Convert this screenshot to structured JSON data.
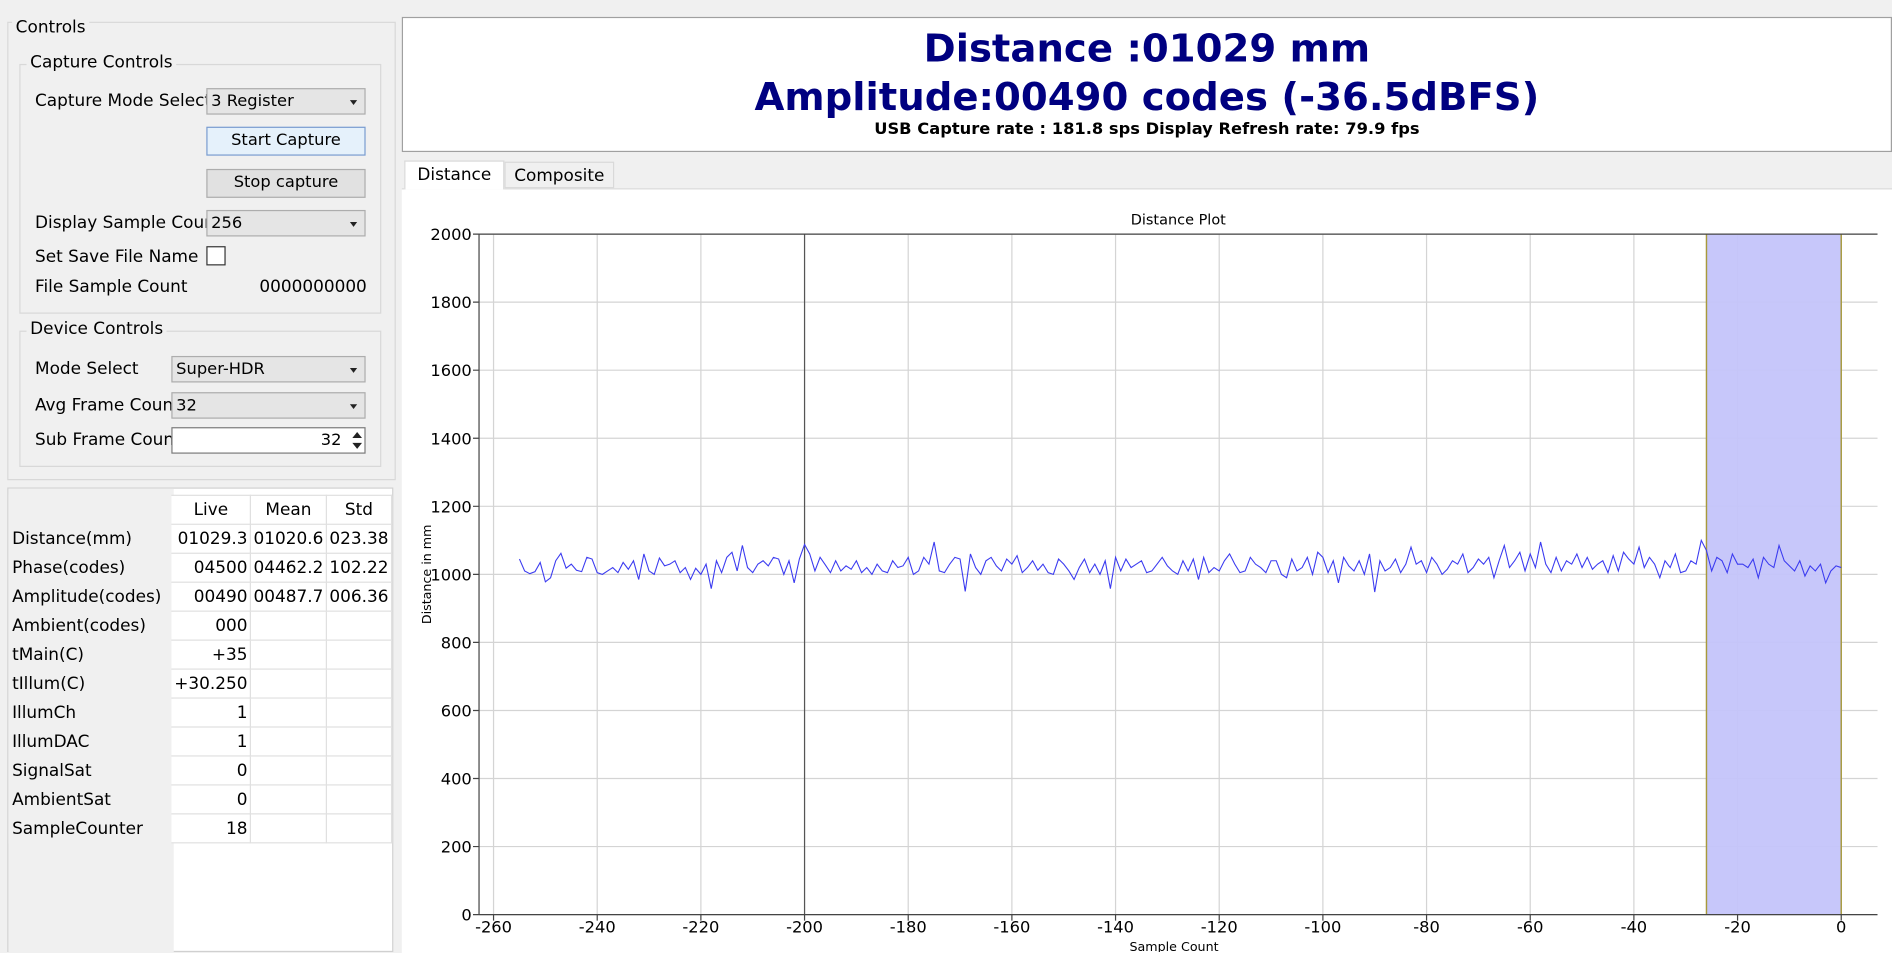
{
  "controls": {
    "title": "Controls",
    "capture": {
      "title": "Capture Controls",
      "mode_label": "Capture Mode Select",
      "mode_value": "3 Register",
      "start": "Start Capture",
      "stop": "Stop capture",
      "count_label": "Display Sample Count",
      "count_value": "256",
      "save_label": "Set Save File Name",
      "file_count_label": "File Sample Count",
      "file_count_value": "0000000000"
    },
    "device": {
      "title": "Device Controls",
      "mode_label": "Mode Select",
      "mode_value": "Super-HDR",
      "avg_label": "Avg Frame Count",
      "avg_value": "32",
      "sub_label": "Sub Frame Count",
      "sub_value": "32"
    }
  },
  "table": {
    "header": [
      "Live",
      "Mean",
      "Std"
    ],
    "rows": [
      [
        "Distance(mm)",
        "01029.3",
        "01020.6",
        "023.38"
      ],
      [
        "Phase(codes)",
        "04500",
        "04462.2",
        "102.22"
      ],
      [
        "Amplitude(codes)",
        "00490",
        "00487.7",
        "006.36"
      ],
      [
        "Ambient(codes)",
        "000"
      ],
      [
        "tMain(C)",
        "+35"
      ],
      [
        "tIllum(C)",
        "+30.250"
      ],
      [
        "IllumCh",
        "1"
      ],
      [
        "IllumDAC",
        "1"
      ],
      [
        "SignalSat",
        "0"
      ],
      [
        "AmbientSat",
        "0"
      ],
      [
        "SampleCounter",
        "18"
      ]
    ]
  },
  "header": {
    "distance": "Distance :01029 mm",
    "amplitude": "Amplitude:00490 codes (-36.5dBFS)",
    "rates": "USB Capture rate : 181.8 sps Display Refresh rate: 79.9 fps"
  },
  "tabs": [
    "Distance",
    "Composite"
  ],
  "chart_data": {
    "type": "line",
    "title": "Distance Plot",
    "y_label": "Distance in mm",
    "x_label": "Sample Count",
    "color": "#3b3bf0",
    "xlim": [
      -262.8,
      7
    ],
    "xticks": [
      -260,
      -240,
      -220,
      -200,
      -180,
      -160,
      -140,
      -120,
      -100,
      -80,
      -60,
      -40,
      -20,
      0
    ],
    "ylim": [
      0,
      2000
    ],
    "yticks": [
      0,
      200,
      400,
      600,
      800,
      1000,
      1200,
      1400,
      1600,
      1800,
      2000
    ],
    "grid": true,
    "highlight_range": [
      -26,
      0
    ],
    "cursor_x": -200,
    "x": [
      -255,
      -254,
      -253,
      -252,
      -251,
      -250,
      -249,
      -248,
      -247,
      -246,
      -245,
      -244,
      -243,
      -242,
      -241,
      -240,
      -239,
      -238,
      -237,
      -236,
      -235,
      -234,
      -233,
      -232,
      -231,
      -230,
      -229,
      -228,
      -227,
      -226,
      -225,
      -224,
      -223,
      -222,
      -221,
      -220,
      -219,
      -218,
      -217,
      -216,
      -215,
      -214,
      -213,
      -212,
      -211,
      -210,
      -209,
      -208,
      -207,
      -206,
      -205,
      -204,
      -203,
      -202,
      -201,
      -200,
      -199,
      -198,
      -197,
      -196,
      -195,
      -194,
      -193,
      -192,
      -191,
      -190,
      -189,
      -188,
      -187,
      -186,
      -185,
      -184,
      -183,
      -182,
      -181,
      -180,
      -179,
      -178,
      -177,
      -176,
      -175,
      -174,
      -173,
      -172,
      -171,
      -170,
      -169,
      -168,
      -167,
      -166,
      -165,
      -164,
      -163,
      -162,
      -161,
      -160,
      -159,
      -158,
      -157,
      -156,
      -155,
      -154,
      -153,
      -152,
      -151,
      -150,
      -149,
      -148,
      -147,
      -146,
      -145,
      -144,
      -143,
      -142,
      -141,
      -140,
      -139,
      -138,
      -137,
      -136,
      -135,
      -134,
      -133,
      -132,
      -131,
      -130,
      -129,
      -128,
      -127,
      -126,
      -125,
      -124,
      -123,
      -122,
      -121,
      -120,
      -119,
      -118,
      -117,
      -116,
      -115,
      -114,
      -113,
      -112,
      -111,
      -110,
      -109,
      -108,
      -107,
      -106,
      -105,
      -104,
      -103,
      -102,
      -101,
      -100,
      -99,
      -98,
      -97,
      -96,
      -95,
      -94,
      -93,
      -92,
      -91,
      -90,
      -89,
      -88,
      -87,
      -86,
      -85,
      -84,
      -83,
      -82,
      -81,
      -80,
      -79,
      -78,
      -77,
      -76,
      -75,
      -74,
      -73,
      -72,
      -71,
      -70,
      -69,
      -68,
      -67,
      -66,
      -65,
      -64,
      -63,
      -62,
      -61,
      -60,
      -59,
      -58,
      -57,
      -56,
      -55,
      -54,
      -53,
      -52,
      -51,
      -50,
      -49,
      -48,
      -47,
      -46,
      -45,
      -44,
      -43,
      -42,
      -41,
      -40,
      -39,
      -38,
      -37,
      -36,
      -35,
      -34,
      -33,
      -32,
      -31,
      -30,
      -29,
      -28,
      -27,
      -26,
      -25,
      -24,
      -23,
      -22,
      -21,
      -20,
      -19,
      -18,
      -17,
      -16,
      -15,
      -14,
      -13,
      -12,
      -11,
      -10,
      -9,
      -8,
      -7,
      -6,
      -5,
      -4,
      -3,
      -2,
      -1,
      0
    ],
    "values": [
      1045,
      1010,
      1002,
      1008,
      1035,
      978,
      990,
      1040,
      1062,
      1018,
      1030,
      1012,
      1008,
      1050,
      1045,
      1005,
      1000,
      1010,
      1020,
      1005,
      1035,
      1015,
      1040,
      985,
      1060,
      1010,
      1000,
      1048,
      1025,
      1030,
      1040,
      1005,
      1020,
      985,
      1018,
      1000,
      1030,
      958,
      1040,
      1005,
      1050,
      1065,
      1010,
      1085,
      1020,
      1005,
      1030,
      1040,
      1025,
      1050,
      1045,
      1000,
      1040,
      975,
      1045,
      1088,
      1060,
      1010,
      1050,
      1028,
      1005,
      1040,
      1010,
      1025,
      1015,
      1040,
      1005,
      1020,
      1000,
      1030,
      1010,
      1005,
      1040,
      1020,
      1025,
      1050,
      1000,
      1010,
      1050,
      1030,
      1095,
      1010,
      1005,
      1030,
      1050,
      1045,
      950,
      1060,
      1020,
      1000,
      1040,
      1050,
      1025,
      1010,
      1045,
      1030,
      1055,
      1005,
      1020,
      1040,
      1012,
      1030,
      1005,
      1000,
      1045,
      1030,
      1010,
      985,
      1020,
      1045,
      1005,
      1030,
      1000,
      1040,
      958,
      1050,
      1010,
      1045,
      1020,
      1030,
      1040,
      1005,
      1010,
      1030,
      1050,
      1025,
      1010,
      1000,
      1040,
      1010,
      1045,
      985,
      1050,
      1005,
      1020,
      1010,
      1040,
      1060,
      1030,
      1005,
      1010,
      1050,
      1030,
      1020,
      1005,
      1040,
      1040,
      1000,
      990,
      1045,
      1010,
      1020,
      1050,
      1000,
      1065,
      1050,
      1005,
      1040,
      975,
      1050,
      1025,
      1010,
      1040,
      1000,
      1060,
      948,
      1040,
      1010,
      1020,
      1045,
      1005,
      1030,
      1080,
      1030,
      1040,
      1005,
      1050,
      1030,
      1000,
      1015,
      1040,
      1030,
      1060,
      1005,
      1020,
      1045,
      1030,
      1050,
      990,
      1040,
      1085,
      1020,
      1040,
      1065,
      1010,
      1060,
      1020,
      1095,
      1030,
      1005,
      1050,
      1010,
      1040,
      1030,
      1060,
      1020,
      1050,
      1015,
      1030,
      1040,
      1005,
      1055,
      1010,
      1065,
      1045,
      1030,
      1080,
      1020,
      1050,
      1030,
      990,
      1040,
      1020,
      1060,
      1005,
      1010,
      1040,
      1030,
      1100,
      1070,
      1010,
      1050,
      1040,
      1005,
      1060,
      1030,
      1030,
      1020,
      1045,
      990,
      1050,
      1030,
      1020,
      1085,
      1040,
      1025,
      1010,
      1040,
      995,
      1025,
      1010,
      1030,
      975,
      1010,
      1025,
      1020
    ]
  }
}
